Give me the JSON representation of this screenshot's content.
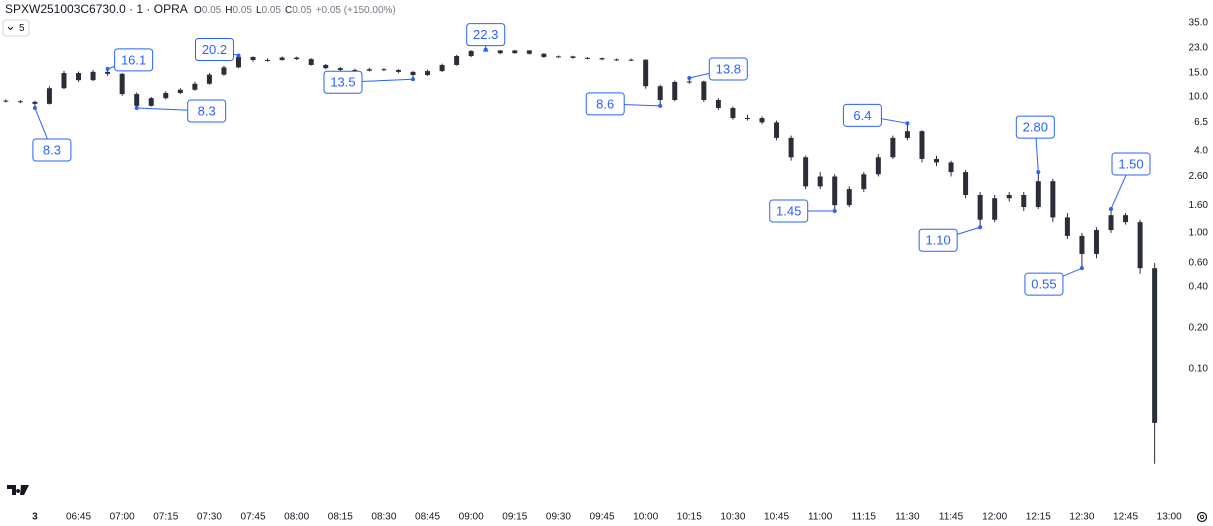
{
  "header": {
    "symbol": "SPXW251003C6730.0 · 1 · OPRA",
    "stats": [
      {
        "label": "O",
        "value": 0.05
      },
      {
        "label": "H",
        "value": 0.05
      },
      {
        "label": "L",
        "value": 0.05
      },
      {
        "label": "C",
        "value": 0.05
      }
    ],
    "change": "+0.05 (+150.00%)",
    "interval": "5"
  },
  "chart_data": {
    "type": "candlestick",
    "log_scale": true,
    "color": "#2a2e39",
    "annotation_color": "#2962ff",
    "xlim": [
      "06:18",
      "13:02"
    ],
    "ylim": [
      0.0152,
      51.7
    ],
    "xticks": [
      {
        "value": "06:30",
        "label": "3"
      },
      "06:45",
      "07:00",
      "07:15",
      "07:30",
      "07:45",
      "08:00",
      "08:15",
      "08:30",
      "08:45",
      "09:00",
      "09:15",
      "09:30",
      "09:45",
      "10:00",
      "10:15",
      "10:30",
      "10:45",
      "11:00",
      "11:15",
      "11:30",
      "11:45",
      "12:00",
      "12:15",
      "12:30",
      "12:45",
      "13:00"
    ],
    "yticks": [
      {
        "value": 35,
        "label": "35.0"
      },
      {
        "value": 23,
        "label": "23.0"
      },
      {
        "value": 15,
        "label": "15.0"
      },
      {
        "value": 10,
        "label": "10.0"
      },
      6.5,
      {
        "value": 4,
        "label": "4.0"
      },
      {
        "value": 2.6,
        "label": "2.60"
      },
      {
        "value": 1.6,
        "label": "1.60"
      },
      {
        "value": 1,
        "label": "1.00"
      },
      {
        "value": 0.6,
        "label": "0.60"
      },
      {
        "value": 0.4,
        "label": "0.40"
      },
      {
        "value": 0.2,
        "label": "0.20"
      },
      {
        "value": 0.1,
        "label": "0.10"
      }
    ],
    "x": [
      "06:20",
      "06:25",
      "06:30",
      "06:35",
      "06:40",
      "06:45",
      "06:50",
      "06:55",
      "07:00",
      "07:05",
      "07:10",
      "07:15",
      "07:20",
      "07:25",
      "07:30",
      "07:35",
      "07:40",
      "07:45",
      "07:50",
      "07:55",
      "08:00",
      "08:05",
      "08:10",
      "08:15",
      "08:20",
      "08:25",
      "08:30",
      "08:35",
      "08:40",
      "08:45",
      "08:50",
      "08:55",
      "09:00",
      "09:05",
      "09:10",
      "09:15",
      "09:20",
      "09:25",
      "09:30",
      "09:35",
      "09:40",
      "09:45",
      "09:50",
      "09:55",
      "10:00",
      "10:05",
      "10:10",
      "10:15",
      "10:20",
      "10:25",
      "10:30",
      "10:35",
      "10:40",
      "10:45",
      "10:50",
      "10:55",
      "11:00",
      "11:05",
      "11:10",
      "11:15",
      "11:20",
      "11:25",
      "11:30",
      "11:35",
      "11:40",
      "11:45",
      "11:50",
      "11:55",
      "12:00",
      "12:05",
      "12:10",
      "12:15",
      "12:20",
      "12:25",
      "12:30",
      "12:35",
      "12:40",
      "12:45",
      "12:50",
      "12:55"
    ],
    "open": [
      9.4,
      9.3,
      9.2,
      8.9,
      11.6,
      15.0,
      13.3,
      15.3,
      14.8,
      10.5,
      8.6,
      9.8,
      10.7,
      11.3,
      12.5,
      14.6,
      16.5,
      19.7,
      18.7,
      18.7,
      19.5,
      19.0,
      17.2,
      16.3,
      15.8,
      15.6,
      16.0,
      15.8,
      15.3,
      14.5,
      15.5,
      17.2,
      20.0,
      21.8,
      22.0,
      21.0,
      22.0,
      20.8,
      19.7,
      19.9,
      19.4,
      19.3,
      18.9,
      18.7,
      18.8,
      12.0,
      9.5,
      12.9,
      13.0,
      9.5,
      8.3,
      7.0,
      7.0,
      6.5,
      5.0,
      3.6,
      2.2,
      2.6,
      1.6,
      2.1,
      2.7,
      3.6,
      5.0,
      5.6,
      3.5,
      3.3,
      2.8,
      1.9,
      1.25,
      1.8,
      1.9,
      1.55,
      2.4,
      1.3,
      0.95,
      0.7,
      1.05,
      1.35,
      1.2,
      0.55
    ],
    "high": [
      9.6,
      9.5,
      9.4,
      12.0,
      15.6,
      15.4,
      15.8,
      16.1,
      15.0,
      10.8,
      10.0,
      11.0,
      11.6,
      12.9,
      15.0,
      17.0,
      20.2,
      19.9,
      19.3,
      19.9,
      19.8,
      19.3,
      17.5,
      16.6,
      16.2,
      16.4,
      16.3,
      16.0,
      15.5,
      15.9,
      17.6,
      20.4,
      22.1,
      22.3,
      22.1,
      22.2,
      22.1,
      21.0,
      20.2,
      20.1,
      19.7,
      19.5,
      19.2,
      19.2,
      19.0,
      12.3,
      13.2,
      13.8,
      13.2,
      9.8,
      8.5,
      7.4,
      7.2,
      6.7,
      5.2,
      3.7,
      2.8,
      2.7,
      2.2,
      2.8,
      3.8,
      5.2,
      6.4,
      5.7,
      3.7,
      3.4,
      2.9,
      2.0,
      1.9,
      2.0,
      2.0,
      2.8,
      2.5,
      1.4,
      1.0,
      1.1,
      1.5,
      1.4,
      1.25,
      0.6
    ],
    "low": [
      9.1,
      9.0,
      8.3,
      8.8,
      11.4,
      12.9,
      13.1,
      14.3,
      10.2,
      8.3,
      8.5,
      9.6,
      10.5,
      11.1,
      12.3,
      14.3,
      16.3,
      18.2,
      18.2,
      18.5,
      18.7,
      17.0,
      16.0,
      15.5,
      15.3,
      15.4,
      15.5,
      15.0,
      13.5,
      14.3,
      15.3,
      17.0,
      19.7,
      21.5,
      20.6,
      20.8,
      20.5,
      19.4,
      19.4,
      19.1,
      19.0,
      18.6,
      18.4,
      18.4,
      11.5,
      8.6,
      9.3,
      12.5,
      9.2,
      8.0,
      6.8,
      6.7,
      6.3,
      4.8,
      3.4,
      2.1,
      2.1,
      1.45,
      1.55,
      2.0,
      2.6,
      3.5,
      4.8,
      3.3,
      3.1,
      2.6,
      1.8,
      1.1,
      1.2,
      1.7,
      1.45,
      1.5,
      1.2,
      0.9,
      0.55,
      0.65,
      1.0,
      1.15,
      0.5,
      0.02
    ],
    "close": [
      9.3,
      9.2,
      8.9,
      11.6,
      15.0,
      13.3,
      15.3,
      14.8,
      10.5,
      8.6,
      9.8,
      10.7,
      11.3,
      12.5,
      14.6,
      16.5,
      19.7,
      18.7,
      18.7,
      19.5,
      19.0,
      17.2,
      16.3,
      15.8,
      15.6,
      16.0,
      15.8,
      15.3,
      14.5,
      15.5,
      17.2,
      20.0,
      21.8,
      22.0,
      21.0,
      22.0,
      20.8,
      19.7,
      19.9,
      19.4,
      19.3,
      18.9,
      18.7,
      18.8,
      12.0,
      9.5,
      12.9,
      13.0,
      9.5,
      8.3,
      7.0,
      7.0,
      6.5,
      5.0,
      3.6,
      2.2,
      2.6,
      1.6,
      2.1,
      2.7,
      3.6,
      5.0,
      5.6,
      3.5,
      3.3,
      2.8,
      1.9,
      1.25,
      1.8,
      1.9,
      1.55,
      2.4,
      1.3,
      0.95,
      0.7,
      1.05,
      1.35,
      1.2,
      0.55,
      0.04
    ],
    "annotations": [
      {
        "x": "06:30",
        "value": 8.3,
        "label": "8.3"
      },
      {
        "x": "06:55",
        "value": 16.1,
        "label": "16.1"
      },
      {
        "x": "07:05",
        "value": 8.3,
        "label": "8.3"
      },
      {
        "x": "07:40",
        "value": 20.2,
        "label": "20.2"
      },
      {
        "x": "08:40",
        "value": 13.5,
        "label": "13.5"
      },
      {
        "x": "09:05",
        "value": 22.3,
        "label": "22.3"
      },
      {
        "x": "10:05",
        "value": 8.6,
        "label": "8.6"
      },
      {
        "x": "10:15",
        "value": 13.8,
        "label": "13.8"
      },
      {
        "x": "11:05",
        "value": 1.45,
        "label": "1.45"
      },
      {
        "x": "11:30",
        "value": 6.4,
        "label": "6.4"
      },
      {
        "x": "11:55",
        "value": 1.1,
        "label": "1.10"
      },
      {
        "x": "12:15",
        "value": 2.8,
        "label": "2.80"
      },
      {
        "x": "12:30",
        "value": 0.55,
        "label": "0.55"
      },
      {
        "x": "12:40",
        "value": 1.5,
        "label": "1.50"
      }
    ]
  }
}
